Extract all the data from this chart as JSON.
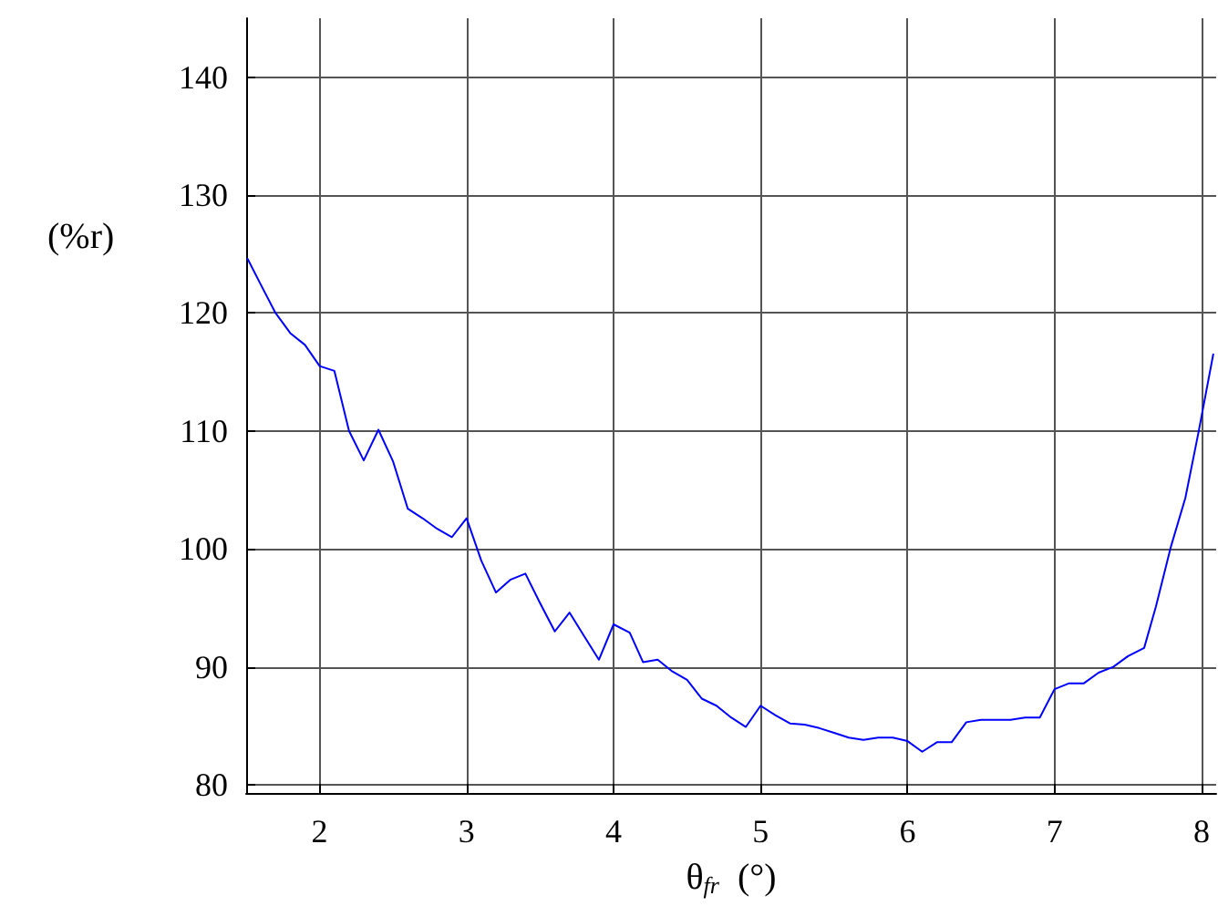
{
  "chart_data": {
    "type": "line",
    "xlabel": "θ$_{fr}$  (°)",
    "ylabel": "(%r)",
    "xlim": [
      1.5,
      8.1
    ],
    "xticks": [
      2,
      3,
      4,
      5,
      6,
      7,
      8
    ],
    "ylim": [
      79.3,
      145
    ],
    "yticks": [
      80,
      90,
      100,
      110,
      120,
      130,
      140
    ],
    "grid": true,
    "marker": "none",
    "line_style": "solid",
    "series": [
      {
        "color": "#0000ff",
        "x": [
          1.51,
          1.6,
          1.7,
          1.8,
          1.9,
          2.0,
          2.1,
          2.2,
          2.3,
          2.4,
          2.5,
          2.6,
          2.7,
          2.8,
          2.9,
          3.0,
          3.1,
          3.2,
          3.3,
          3.4,
          3.5,
          3.6,
          3.7,
          3.8,
          3.9,
          4.0,
          4.11,
          4.2,
          4.3,
          4.4,
          4.5,
          4.6,
          4.7,
          4.8,
          4.9,
          5.0,
          5.1,
          5.2,
          5.3,
          5.4,
          5.5,
          5.6,
          5.7,
          5.8,
          5.9,
          6.0,
          6.1,
          6.2,
          6.3,
          6.4,
          6.5,
          6.6,
          6.7,
          6.8,
          6.9,
          7.0,
          7.1,
          7.2,
          7.3,
          7.4,
          7.5,
          7.61,
          7.69,
          7.79,
          7.89,
          7.98,
          8.08
        ],
        "values": [
          124.6,
          122.4,
          120,
          118.3,
          117.3,
          115.5,
          115.1,
          110,
          107.5,
          110.1,
          107.4,
          103.4,
          102.6,
          101.7,
          101,
          102.6,
          99,
          96.3,
          97.4,
          97.9,
          95.4,
          93,
          94.6,
          92.6,
          90.6,
          93.6,
          92.9,
          90.4,
          90.6,
          89.6,
          88.9,
          87.3,
          86.7,
          85.7,
          84.9,
          86.7,
          85.9,
          85.2,
          85.1,
          84.8,
          84.4,
          84,
          83.8,
          84,
          84,
          83.7,
          82.8,
          83.6,
          83.6,
          85.3,
          85.5,
          85.5,
          85.5,
          85.7,
          85.7,
          88.1,
          88.6,
          88.6,
          89.5,
          90,
          90.9,
          91.6,
          95.1,
          100.1,
          104.3,
          109.9,
          116.5
        ]
      }
    ]
  }
}
